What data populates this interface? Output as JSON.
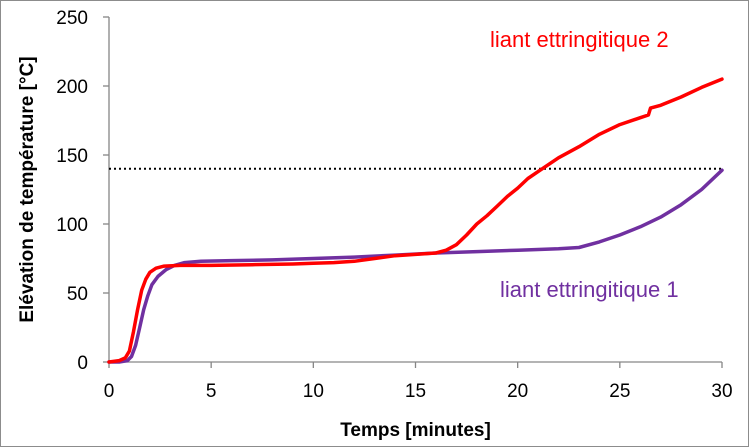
{
  "chart_data": {
    "type": "line",
    "title": "",
    "xlabel": "Temps [minutes]",
    "ylabel": "Elévation de température [°C]",
    "xlim": [
      0,
      30
    ],
    "ylim": [
      0,
      250
    ],
    "x_ticks": [
      0,
      5,
      10,
      15,
      20,
      25,
      30
    ],
    "y_ticks": [
      0,
      50,
      100,
      150,
      200,
      250
    ],
    "grid": false,
    "reference_line": {
      "y": 140,
      "style": "dotted",
      "color": "#000000"
    },
    "series": [
      {
        "name": "liant ettringitique 2",
        "color": "#ff0000",
        "points": [
          [
            0,
            0
          ],
          [
            0.5,
            1
          ],
          [
            0.8,
            3
          ],
          [
            1.0,
            8
          ],
          [
            1.2,
            22
          ],
          [
            1.4,
            38
          ],
          [
            1.6,
            52
          ],
          [
            1.8,
            60
          ],
          [
            2.0,
            65
          ],
          [
            2.3,
            68
          ],
          [
            2.7,
            69.5
          ],
          [
            3.5,
            70
          ],
          [
            5,
            70
          ],
          [
            7,
            70.5
          ],
          [
            9,
            71
          ],
          [
            10,
            71.5
          ],
          [
            11,
            72
          ],
          [
            12,
            73
          ],
          [
            13,
            75
          ],
          [
            14,
            77
          ],
          [
            15,
            78
          ],
          [
            16,
            79
          ],
          [
            16.5,
            81
          ],
          [
            17,
            85
          ],
          [
            17.5,
            92
          ],
          [
            18,
            100
          ],
          [
            18.5,
            106
          ],
          [
            19,
            113
          ],
          [
            19.5,
            120
          ],
          [
            20,
            126
          ],
          [
            20.5,
            133
          ],
          [
            21,
            138
          ],
          [
            21.5,
            143
          ],
          [
            22,
            148
          ],
          [
            23,
            156
          ],
          [
            24,
            165
          ],
          [
            25,
            172
          ],
          [
            26,
            177
          ],
          [
            26.4,
            179
          ],
          [
            26.5,
            184
          ],
          [
            27,
            186
          ],
          [
            28,
            192
          ],
          [
            29,
            199
          ],
          [
            30,
            205
          ]
        ]
      },
      {
        "name": "liant ettringitique 1",
        "color": "#7030a0",
        "points": [
          [
            0,
            0
          ],
          [
            0.5,
            0
          ],
          [
            0.9,
            1
          ],
          [
            1.1,
            4
          ],
          [
            1.3,
            12
          ],
          [
            1.5,
            25
          ],
          [
            1.7,
            38
          ],
          [
            1.9,
            48
          ],
          [
            2.1,
            56
          ],
          [
            2.4,
            62
          ],
          [
            2.8,
            67
          ],
          [
            3.2,
            70
          ],
          [
            3.7,
            72
          ],
          [
            4.5,
            73
          ],
          [
            6,
            73.5
          ],
          [
            8,
            74
          ],
          [
            10,
            75
          ],
          [
            12,
            76
          ],
          [
            14,
            77.5
          ],
          [
            16,
            79
          ],
          [
            18,
            80
          ],
          [
            20,
            81
          ],
          [
            22,
            82
          ],
          [
            23,
            83
          ],
          [
            24,
            87
          ],
          [
            25,
            92
          ],
          [
            26,
            98
          ],
          [
            27,
            105
          ],
          [
            28,
            114
          ],
          [
            29,
            125
          ],
          [
            30,
            139
          ]
        ]
      }
    ],
    "annotations": [
      {
        "text": "liant ettringitique 2",
        "color": "#ff0000"
      },
      {
        "text": "liant ettringitique 1",
        "color": "#7030a0"
      }
    ]
  }
}
